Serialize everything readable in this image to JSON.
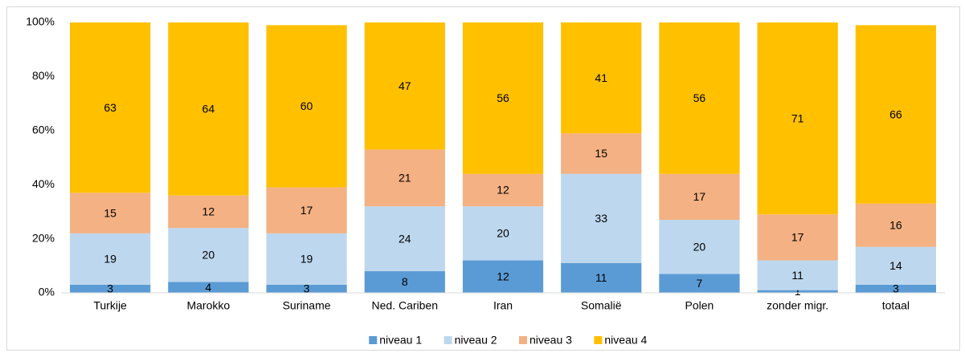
{
  "chart_data": {
    "type": "stacked_bar",
    "categories": [
      "Turkije",
      "Marokko",
      "Suriname",
      "Ned. Cariben",
      "Iran",
      "Somalië",
      "Polen",
      "zonder migr.",
      "totaal"
    ],
    "series": [
      {
        "name": "niveau 1",
        "color": "#5b9bd5",
        "values": [
          3,
          4,
          3,
          8,
          12,
          11,
          7,
          1,
          3
        ]
      },
      {
        "name": "niveau 2",
        "color": "#bdd7ee",
        "values": [
          19,
          20,
          19,
          24,
          20,
          33,
          20,
          11,
          14
        ]
      },
      {
        "name": "niveau 3",
        "color": "#f4b183",
        "values": [
          15,
          12,
          17,
          21,
          12,
          15,
          17,
          17,
          16
        ]
      },
      {
        "name": "niveau 4",
        "color": "#ffc000",
        "values": [
          63,
          64,
          60,
          47,
          56,
          41,
          56,
          71,
          66
        ]
      }
    ],
    "ylim": [
      0,
      100
    ],
    "yticks": [
      {
        "value": 0,
        "label": "0%"
      },
      {
        "value": 20,
        "label": "20%"
      },
      {
        "value": 40,
        "label": "40%"
      },
      {
        "value": 60,
        "label": "60%"
      },
      {
        "value": 80,
        "label": "80%"
      },
      {
        "value": 100,
        "label": "100%"
      }
    ],
    "grid": false,
    "legend": "bottom"
  }
}
